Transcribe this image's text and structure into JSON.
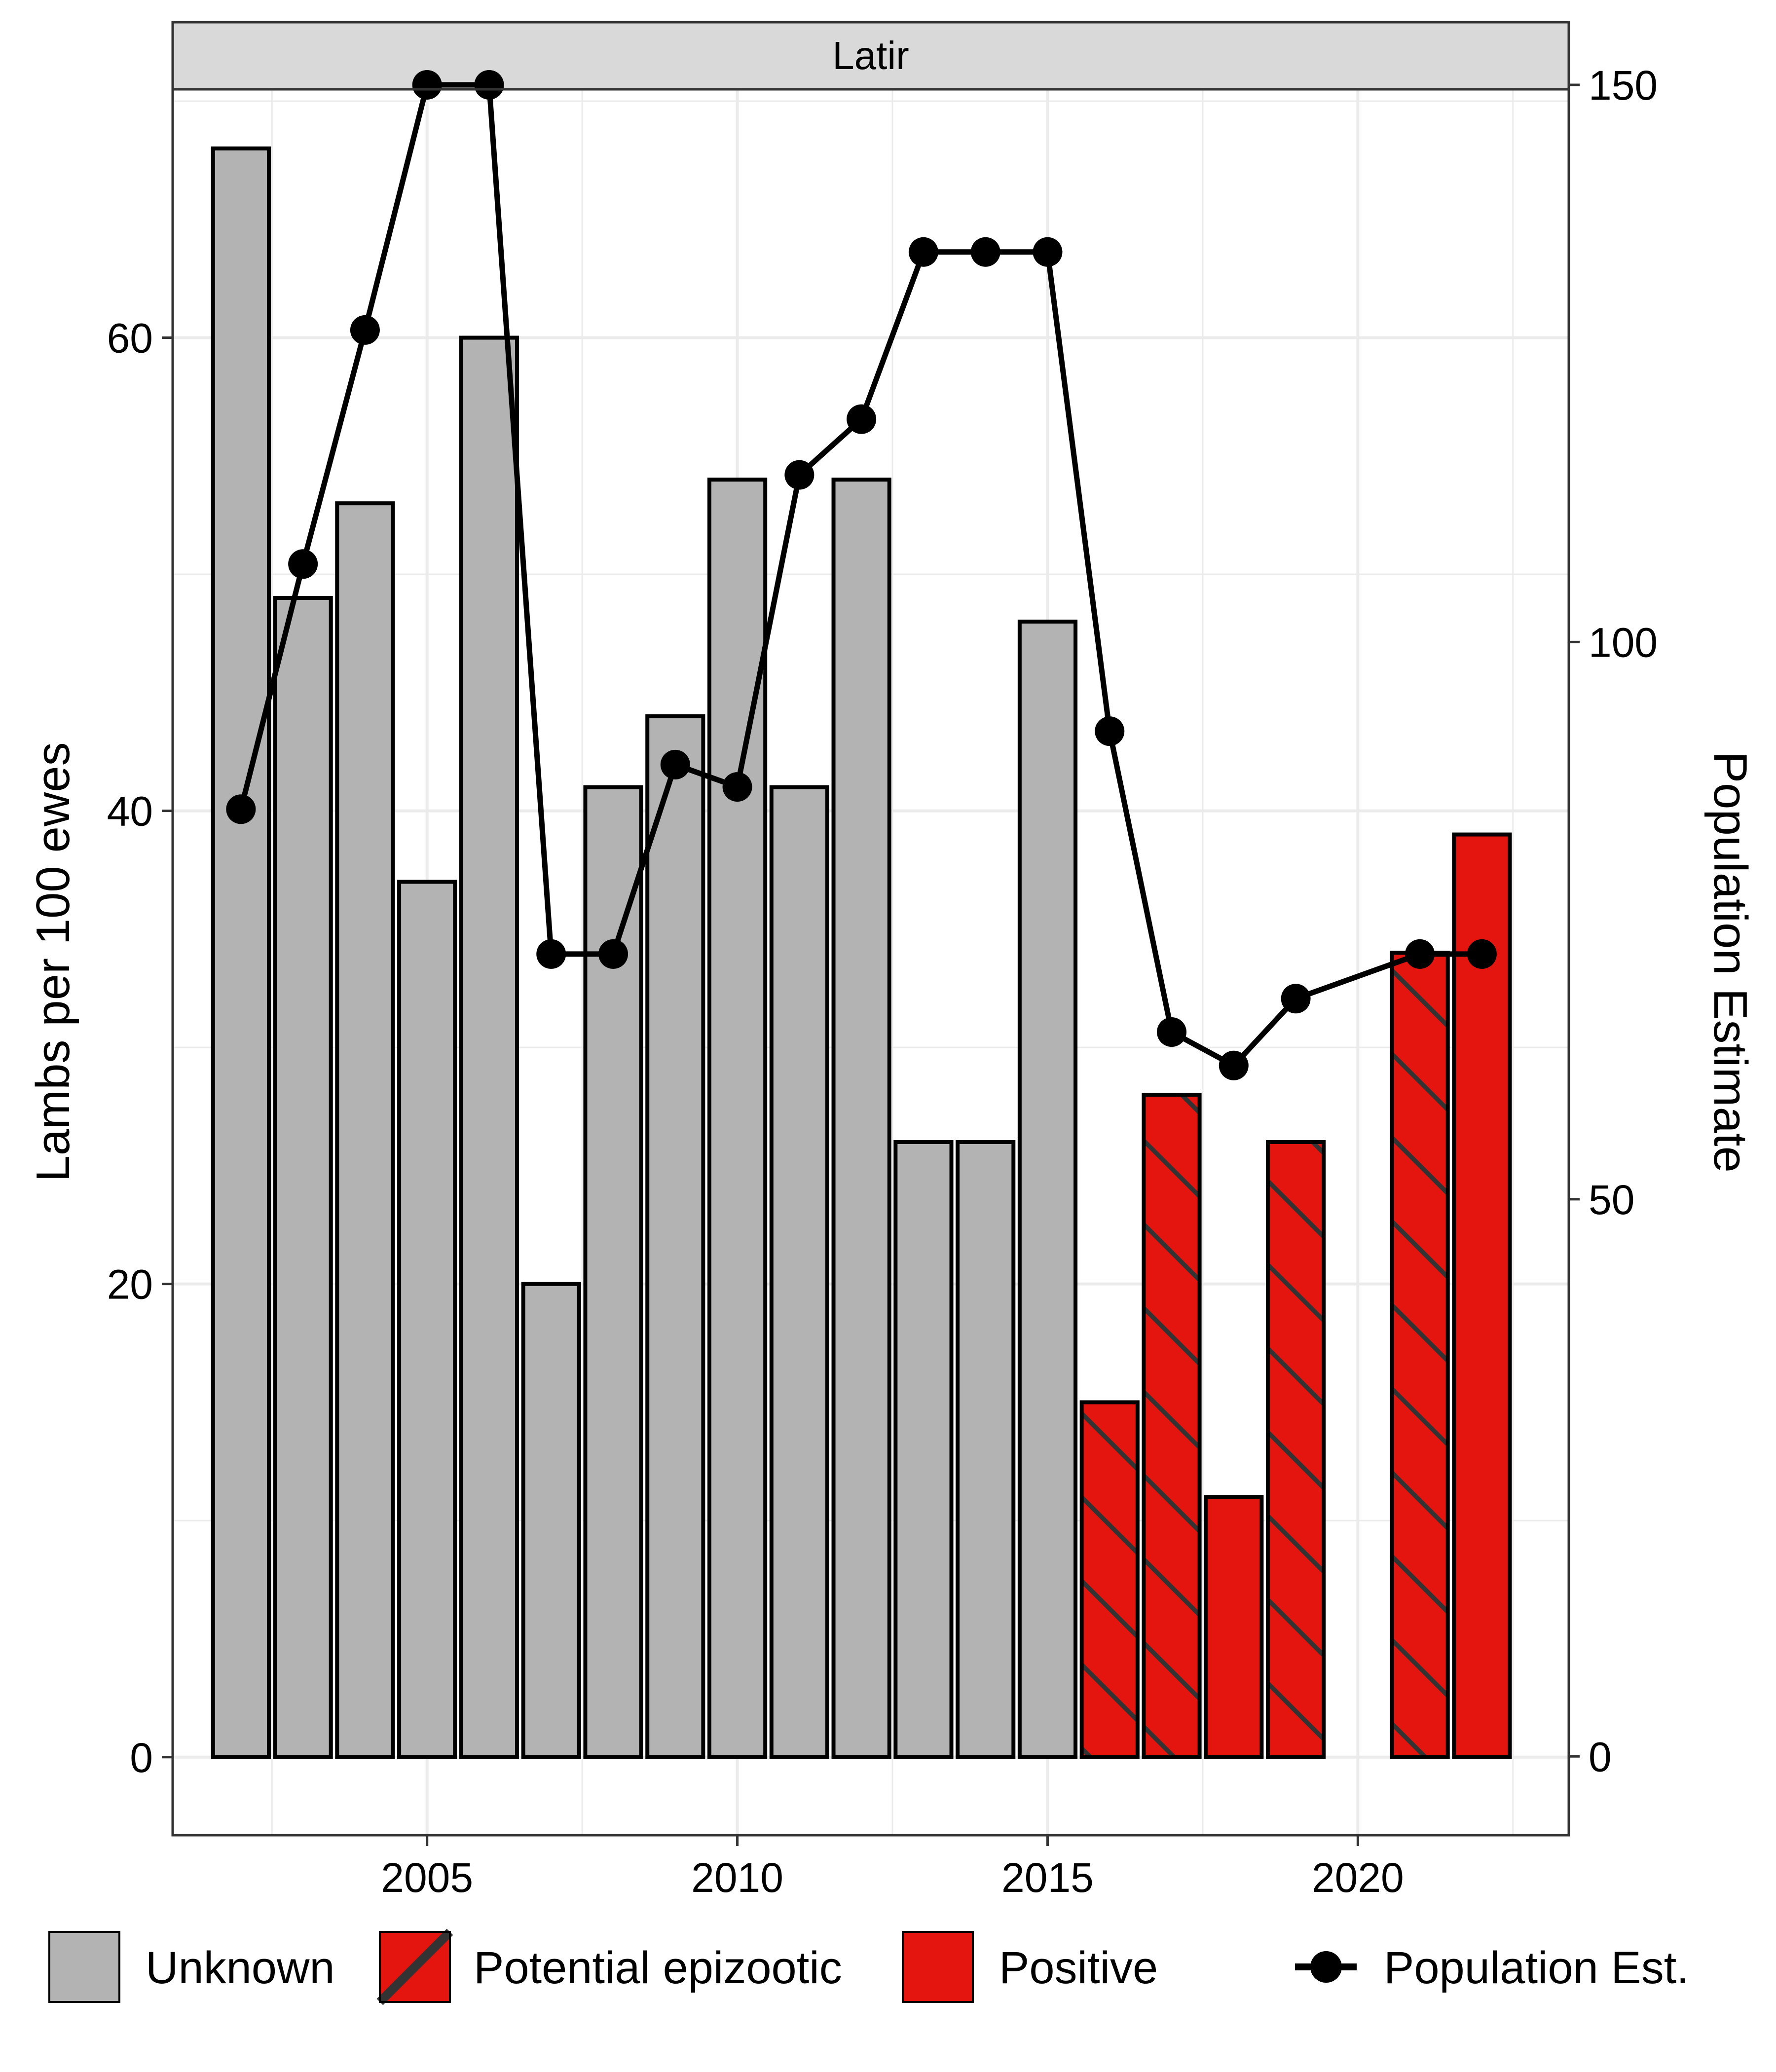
{
  "chart_data": {
    "type": "bar",
    "panel_title": "Latir",
    "ylabel": "Lambs per 100 ewes",
    "y2label": "Population Estimate",
    "xlim": [
      2000.9,
      2023.4
    ],
    "ylim": [
      -3.3,
      70.5
    ],
    "y2lim": [
      -7.07,
      149.6
    ],
    "x_ticks": [
      2005,
      2010,
      2015,
      2020
    ],
    "y_ticks": [
      0,
      20,
      40,
      60
    ],
    "y2_ticks": [
      0,
      50,
      100,
      150
    ],
    "grid": true,
    "legend_position": "bottom",
    "colors": {
      "Unknown": "#b3b3b3",
      "Potential epizootic": "#e3150e",
      "Positive": "#e3150e",
      "stroke": "#000000",
      "hatch": "#333333"
    },
    "bars": [
      {
        "year": 2002,
        "value": 68,
        "category": "Unknown"
      },
      {
        "year": 2003,
        "value": 49,
        "category": "Unknown"
      },
      {
        "year": 2004,
        "value": 53,
        "category": "Unknown"
      },
      {
        "year": 2005,
        "value": 37,
        "category": "Unknown"
      },
      {
        "year": 2006,
        "value": 60,
        "category": "Unknown"
      },
      {
        "year": 2007,
        "value": 20,
        "category": "Unknown"
      },
      {
        "year": 2008,
        "value": 41,
        "category": "Unknown"
      },
      {
        "year": 2009,
        "value": 44,
        "category": "Unknown"
      },
      {
        "year": 2010,
        "value": 54,
        "category": "Unknown"
      },
      {
        "year": 2011,
        "value": 41,
        "category": "Unknown"
      },
      {
        "year": 2012,
        "value": 54,
        "category": "Unknown"
      },
      {
        "year": 2013,
        "value": 26,
        "category": "Unknown"
      },
      {
        "year": 2014,
        "value": 26,
        "category": "Unknown"
      },
      {
        "year": 2015,
        "value": 48,
        "category": "Unknown"
      },
      {
        "year": 2016,
        "value": 15,
        "category": "Potential epizootic"
      },
      {
        "year": 2017,
        "value": 28,
        "category": "Potential epizootic"
      },
      {
        "year": 2018,
        "value": 11,
        "category": "Positive"
      },
      {
        "year": 2019,
        "value": 26,
        "category": "Potential epizootic"
      },
      {
        "year": 2021,
        "value": 34,
        "category": "Potential epizootic"
      },
      {
        "year": 2022,
        "value": 39,
        "category": "Positive"
      }
    ],
    "population_series": {
      "name": "Population Est.",
      "points": [
        {
          "year": 2002,
          "value": 85
        },
        {
          "year": 2003,
          "value": 107
        },
        {
          "year": 2004,
          "value": 128
        },
        {
          "year": 2005,
          "value": 150
        },
        {
          "year": 2006,
          "value": 150
        },
        {
          "year": 2007,
          "value": 72
        },
        {
          "year": 2008,
          "value": 72
        },
        {
          "year": 2009,
          "value": 89
        },
        {
          "year": 2010,
          "value": 87
        },
        {
          "year": 2011,
          "value": 115
        },
        {
          "year": 2012,
          "value": 120
        },
        {
          "year": 2013,
          "value": 135
        },
        {
          "year": 2014,
          "value": 135
        },
        {
          "year": 2015,
          "value": 135
        },
        {
          "year": 2016,
          "value": 92
        },
        {
          "year": 2017,
          "value": 65
        },
        {
          "year": 2018,
          "value": 62
        },
        {
          "year": 2019,
          "value": 68
        },
        {
          "year": 2021,
          "value": 72
        },
        {
          "year": 2022,
          "value": 72
        }
      ]
    },
    "legend": [
      "Unknown",
      "Potential epizootic",
      "Positive",
      "Population Est."
    ]
  }
}
